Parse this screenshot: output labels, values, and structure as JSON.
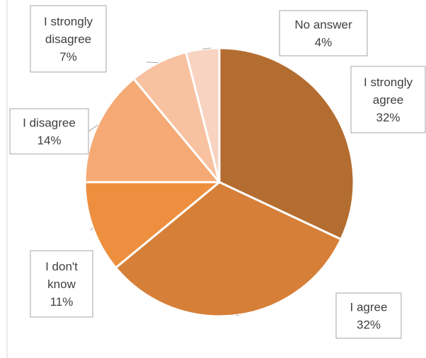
{
  "chart_data": {
    "type": "pie",
    "title": "",
    "start_angle_deg": 0,
    "direction": "clockwise",
    "slices": [
      {
        "label_lines": [
          "I strongly",
          "agree"
        ],
        "name": "I strongly agree",
        "percent_label": "32%",
        "value": 32,
        "color": "#b46d30"
      },
      {
        "label_lines": [
          "I agree"
        ],
        "name": "I agree",
        "percent_label": "32%",
        "value": 32,
        "color": "#d67f38"
      },
      {
        "label_lines": [
          "I don't",
          "know"
        ],
        "name": "I don't know",
        "percent_label": "11%",
        "value": 11,
        "color": "#ed8f3e"
      },
      {
        "label_lines": [
          "I disagree"
        ],
        "name": "I disagree",
        "percent_label": "14%",
        "value": 14,
        "color": "#f5aa75"
      },
      {
        "label_lines": [
          "I strongly",
          "disagree"
        ],
        "name": "I strongly disagree",
        "percent_label": "7%",
        "value": 7,
        "color": "#f8c1a0"
      },
      {
        "label_lines": [
          "No answer"
        ],
        "name": "No answer",
        "percent_label": "4%",
        "value": 4,
        "color": "#f8d3c1"
      }
    ]
  }
}
